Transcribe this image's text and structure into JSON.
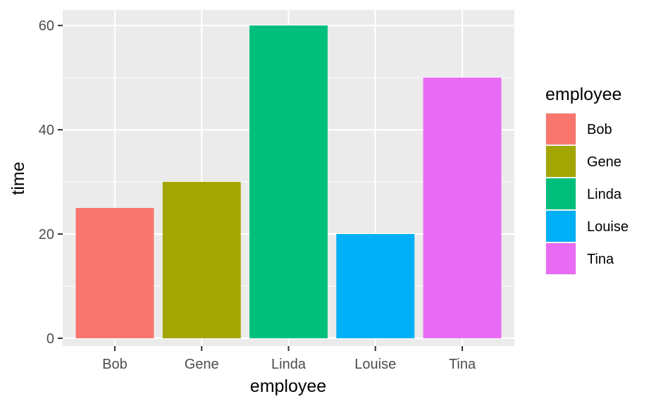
{
  "chart_data": {
    "type": "bar",
    "categories": [
      "Bob",
      "Gene",
      "Linda",
      "Louise",
      "Tina"
    ],
    "values": [
      25,
      30,
      60,
      20,
      50
    ],
    "colors": [
      "#F8766D",
      "#A3A500",
      "#00BF7D",
      "#00B0F6",
      "#E76BF3"
    ],
    "xlabel": "employee",
    "ylabel": "time",
    "ylim": [
      -1.5,
      63
    ],
    "yticks": [
      0,
      20,
      40,
      60
    ],
    "grid": true,
    "panel_background": "#EBEBEB",
    "legend": {
      "title": "employee",
      "position": "right",
      "entries": [
        "Bob",
        "Gene",
        "Linda",
        "Louise",
        "Tina"
      ]
    }
  }
}
